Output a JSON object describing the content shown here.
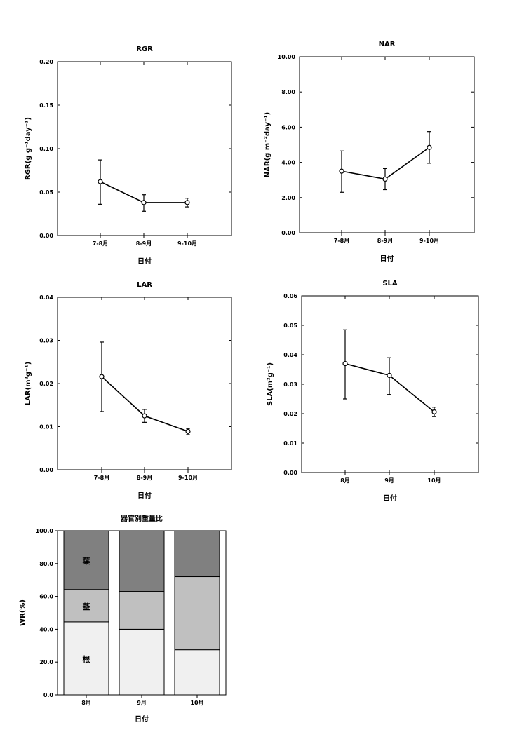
{
  "chart_data": [
    {
      "type": "line",
      "title": "RGR",
      "xlabel": "日付",
      "ylabel": "RGR(g g⁻¹day⁻¹)",
      "categories": [
        "7-8月",
        "8-9月",
        "9-10月"
      ],
      "values": [
        0.062,
        0.038,
        0.038
      ],
      "error_low": [
        0.036,
        0.028,
        0.033
      ],
      "error_high": [
        0.087,
        0.047,
        0.043
      ],
      "ylim": [
        0,
        0.2
      ],
      "yticks": [
        "0.00",
        "0.05",
        "0.10",
        "0.15",
        "0.20"
      ],
      "grid": false
    },
    {
      "type": "line",
      "title": "NAR",
      "xlabel": "日付",
      "ylabel": "NAR(g m⁻²day⁻¹)",
      "categories": [
        "7-8月",
        "8-9月",
        "9-10月"
      ],
      "values": [
        3.5,
        3.05,
        4.85
      ],
      "error_low": [
        2.3,
        2.45,
        3.95
      ],
      "error_high": [
        4.65,
        3.65,
        5.75
      ],
      "ylim": [
        0,
        10
      ],
      "yticks": [
        "0.00",
        "2.00",
        "4.00",
        "6.00",
        "8.00",
        "10.00"
      ],
      "grid": false
    },
    {
      "type": "line",
      "title": "LAR",
      "xlabel": "日付",
      "ylabel": "LAR(m²g⁻¹)",
      "categories": [
        "7-8月",
        "8-9月",
        "9-10月"
      ],
      "values": [
        0.0216,
        0.0125,
        0.0089
      ],
      "error_low": [
        0.0135,
        0.011,
        0.0081
      ],
      "error_high": [
        0.0296,
        0.014,
        0.0096
      ],
      "ylim": [
        0,
        0.04
      ],
      "yticks": [
        "0.00",
        "0.01",
        "0.02",
        "0.03",
        "0.04"
      ],
      "grid": false
    },
    {
      "type": "line",
      "title": "SLA",
      "xlabel": "日付",
      "ylabel": "SLA(m²g⁻¹)",
      "categories": [
        "8月",
        "9月",
        "10月"
      ],
      "values": [
        0.037,
        0.033,
        0.0206
      ],
      "error_low": [
        0.025,
        0.0265,
        0.019
      ],
      "error_high": [
        0.0485,
        0.039,
        0.0222
      ],
      "ylim": [
        0,
        0.06
      ],
      "yticks": [
        "0.00",
        "0.01",
        "0.02",
        "0.03",
        "0.04",
        "0.05",
        "0.06"
      ],
      "grid": false
    },
    {
      "type": "bar",
      "stacked": true,
      "title": "器官別重量比",
      "xlabel": "日付",
      "ylabel": "WR(%)",
      "categories": [
        "8月",
        "9月",
        "10月"
      ],
      "series": [
        {
          "name": "根",
          "values": [
            44.5,
            40.0,
            27.5
          ],
          "color": "#f0f0f0"
        },
        {
          "name": "茎",
          "values": [
            19.7,
            23.0,
            44.5
          ],
          "color": "#c0c0c0"
        },
        {
          "name": "葉",
          "values": [
            35.8,
            37.0,
            28.0
          ],
          "color": "#808080"
        }
      ],
      "ylim": [
        0,
        100
      ],
      "yticks": [
        "0.0",
        "20.0",
        "40.0",
        "60.0",
        "80.0",
        "100.0"
      ],
      "grid": false
    }
  ]
}
